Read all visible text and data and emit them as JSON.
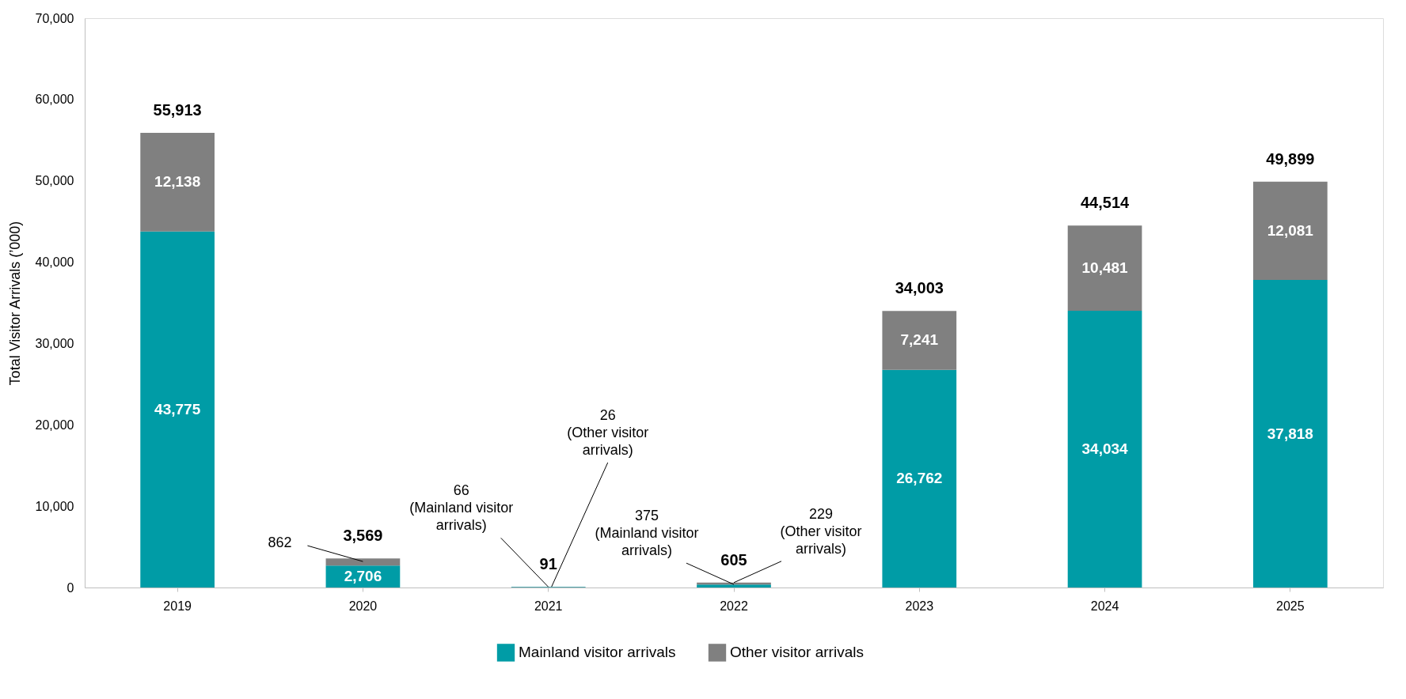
{
  "chart_data": {
    "type": "bar",
    "stacked": true,
    "ylabel": "Total Visitor Arrivals (’000)",
    "categories": [
      "2019",
      "2020",
      "2021",
      "2022",
      "2023",
      "2024",
      "2025"
    ],
    "series": [
      {
        "name": "Mainland visitor arrivals",
        "color": "#009ca6",
        "values": [
          43775,
          2706,
          66,
          375,
          26762,
          34034,
          37818
        ],
        "value_labels": [
          "43,775",
          "2,706",
          null,
          null,
          "26,762",
          "34,034",
          "37,818"
        ]
      },
      {
        "name": "Other visitor arrivals",
        "color": "#808080",
        "values": [
          12138,
          862,
          26,
          229,
          7241,
          10481,
          12081
        ],
        "value_labels": [
          "12,138",
          null,
          null,
          null,
          "7,241",
          "10,481",
          "12,081"
        ]
      }
    ],
    "totals": [
      "55,913",
      "3,569",
      "91",
      "605",
      "34,003",
      "44,514",
      "49,899"
    ],
    "ylim": [
      0,
      70000
    ],
    "yticks": [
      0,
      {
        "value": 10000,
        "label": "10,000"
      },
      {
        "value": 20000,
        "label": "20,000"
      },
      {
        "value": 30000,
        "label": "30,000"
      },
      {
        "value": 40000,
        "label": "40,000"
      },
      {
        "value": 50000,
        "label": "50,000"
      },
      {
        "value": 60000,
        "label": "60,000"
      },
      {
        "value": 70000,
        "label": "70,000"
      }
    ],
    "annotations": [
      {
        "text": "862",
        "x": "2020",
        "y": 3200
      },
      {
        "text": "66 (Mainland visitor arrivals)",
        "x": "2021",
        "y": 66
      },
      {
        "text": "26 (Other visitor arrivals)",
        "x": "2021",
        "y": 92
      },
      {
        "text": "375 (Mainland visitor arrivals)",
        "x": "2022",
        "y": 375
      },
      {
        "text": "229 (Other visitor arrivals)",
        "x": "2022",
        "y": 605
      }
    ],
    "grid": false,
    "legend": "bottom"
  }
}
